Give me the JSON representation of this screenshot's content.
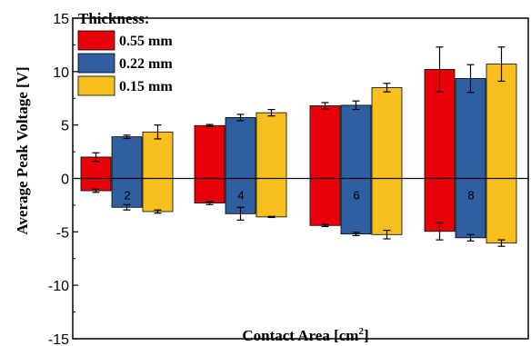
{
  "chart_data": {
    "type": "bar",
    "title": "",
    "xlabel": "Contact Area [cm",
    "xlabel_sup": "2",
    "xlabel_end": "]",
    "ylabel": "Average Peak Voltage [V]",
    "ylim": [
      -15,
      15
    ],
    "yticks": [
      -15,
      -10,
      -5,
      0,
      5,
      10,
      15
    ],
    "categories": [
      "2",
      "4",
      "6",
      "8"
    ],
    "legend_title": "Thickness:",
    "legend_position": "top-left",
    "series": [
      {
        "name": "0.55 mm",
        "color": "#e8000b",
        "positive": [
          2.0,
          4.95,
          6.8,
          10.2
        ],
        "positive_err": [
          0.4,
          0.1,
          0.3,
          2.1
        ],
        "negative": [
          -1.15,
          -2.3,
          -4.4,
          -4.95
        ],
        "negative_err": [
          0.15,
          0.15,
          0.1,
          0.8
        ]
      },
      {
        "name": "0.22 mm",
        "color": "#2f5f9e",
        "positive": [
          3.9,
          5.7,
          6.85,
          9.35
        ],
        "positive_err": [
          0.15,
          0.3,
          0.4,
          1.3
        ],
        "negative": [
          -2.7,
          -3.3,
          -5.2,
          -5.55
        ],
        "negative_err": [
          0.25,
          0.6,
          0.15,
          0.3
        ]
      },
      {
        "name": "0.15 mm",
        "color": "#f8c01e",
        "positive": [
          4.35,
          6.15,
          8.5,
          10.7
        ],
        "positive_err": [
          0.65,
          0.3,
          0.4,
          1.6
        ],
        "negative": [
          -3.1,
          -3.6,
          -5.25,
          -6.05
        ],
        "negative_err": [
          0.15,
          0.05,
          0.4,
          0.3
        ]
      }
    ]
  }
}
